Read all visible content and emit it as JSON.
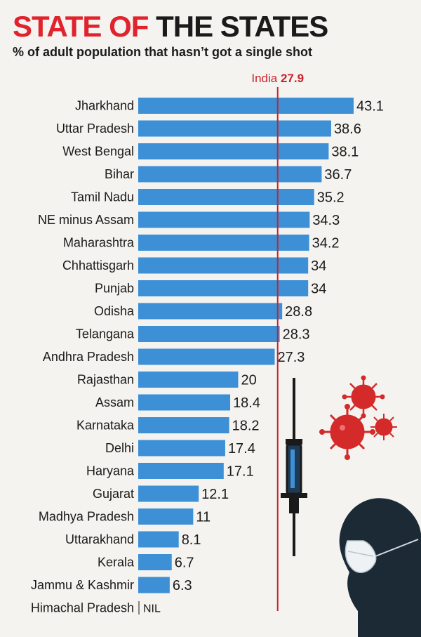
{
  "header": {
    "title_part1": "STATE OF",
    "title_part2": "THE STATES",
    "subtitle": "% of adult population that hasn’t got a single shot"
  },
  "reference": {
    "label": "India",
    "value": 27.9,
    "color": "#c9232c"
  },
  "colors": {
    "bar": "#3d8fd6",
    "title_accent": "#e0232d",
    "virus": "#d42a2a",
    "background": "#f4f3ef"
  },
  "illustration": {
    "icons": [
      "syringe-icon",
      "virus-icon",
      "masked-person-icon"
    ]
  },
  "chart_data": {
    "type": "bar",
    "orientation": "horizontal",
    "title": "STATE OF THE STATES",
    "subtitle": "% of adult population that hasn’t got a single shot",
    "categories": [
      "Jharkhand",
      "Uttar Pradesh",
      "West Bengal",
      "Bihar",
      "Tamil Nadu",
      "NE minus Assam",
      "Maharashtra",
      "Chhattisgarh",
      "Punjab",
      "Odisha",
      "Telangana",
      "Andhra Pradesh",
      "Rajasthan",
      "Assam",
      "Karnataka",
      "Delhi",
      "Haryana",
      "Gujarat",
      "Madhya Pradesh",
      "Uttarakhand",
      "Kerala",
      "Jammu & Kashmir",
      "Himachal Pradesh"
    ],
    "values": [
      43.1,
      38.6,
      38.1,
      36.7,
      35.2,
      34.3,
      34.2,
      34,
      34,
      28.8,
      28.3,
      27.3,
      20,
      18.4,
      18.2,
      17.4,
      17.1,
      12.1,
      11,
      8.1,
      6.7,
      6.3,
      null
    ],
    "value_labels": [
      "43.1",
      "38.6",
      "38.1",
      "36.7",
      "35.2",
      "34.3",
      "34.2",
      "34",
      "34",
      "28.8",
      "28.3",
      "27.3",
      "20",
      "18.4",
      "18.2",
      "17.4",
      "17.1",
      "12.1",
      "11",
      "8.1",
      "6.7",
      "6.3",
      "NIL"
    ],
    "reference_line": {
      "label": "India",
      "value": 27.9
    },
    "xlim": [
      0,
      43.1
    ],
    "grid": false,
    "legend": "none"
  }
}
